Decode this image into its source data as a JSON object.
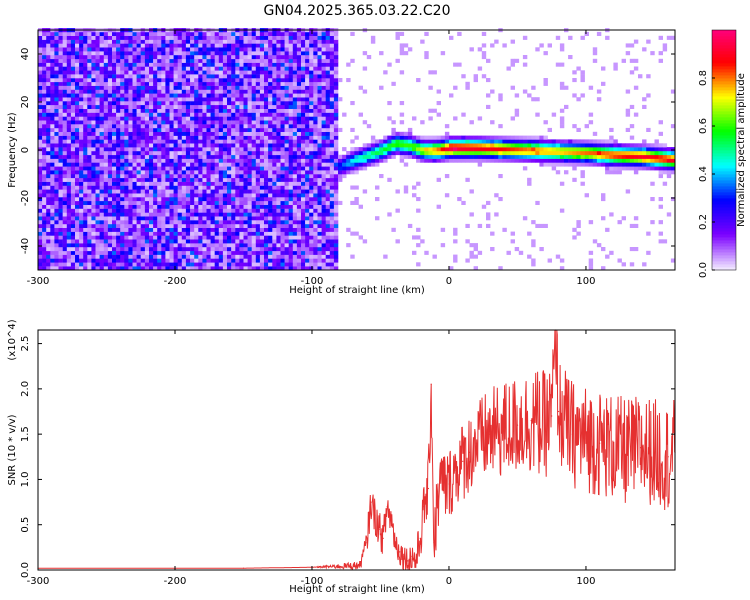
{
  "title": "GN04.2025.365.03.22.C20",
  "chart_data": [
    {
      "type": "heatmap",
      "xlabel": "Height of straight line (km)",
      "ylabel": "Frequency (Hz)",
      "xlim": [
        -300,
        165
      ],
      "ylim": [
        -50,
        50
      ],
      "xticks": [
        -300,
        -200,
        -100,
        0,
        100
      ],
      "yticks": [
        -40,
        -20,
        0,
        20,
        40
      ],
      "grid": false,
      "colorbar": {
        "label": "Normalized spectral amplitude",
        "range": [
          0.0,
          1.0
        ],
        "ticks": [
          "0.0",
          "0.2",
          "0.4",
          "0.6",
          "0.8"
        ],
        "colormap": [
          "#f0e6ff",
          "#7b00ff",
          "#0000ff",
          "#00ffff",
          "#00ff00",
          "#ffff00",
          "#ff0000",
          "#ff0080"
        ]
      },
      "noise_region": {
        "x_from": -300,
        "x_to": -82,
        "amplitude_range": [
          0.02,
          0.35
        ]
      },
      "signal_ridge": {
        "x": [
          -82,
          -70,
          -60,
          -50,
          -40,
          -30,
          -20,
          -10,
          0,
          20,
          40,
          60,
          80,
          100,
          120,
          140,
          165
        ],
        "frequency": [
          -8,
          -5,
          -3,
          -1,
          2,
          1,
          -1,
          -1,
          0,
          0,
          -0.5,
          -1,
          -1.5,
          -2,
          -3,
          -3.5,
          -5
        ],
        "peak_amplitude": [
          0.3,
          0.45,
          0.5,
          0.55,
          0.6,
          0.6,
          0.7,
          0.8,
          0.95,
          0.9,
          0.85,
          0.8,
          0.75,
          0.8,
          0.85,
          0.9,
          0.85
        ]
      }
    },
    {
      "type": "line",
      "xlabel": "Height of straight line (km)",
      "ylabel": "SNR (10 * v/v)",
      "y_multiplier": "(x10^4)",
      "xlim": [
        -300,
        165
      ],
      "ylim": [
        0,
        2.65
      ],
      "xticks": [
        -300,
        -200,
        -100,
        0,
        100
      ],
      "yticks": [
        "0.0",
        "0.5",
        "1.0",
        "1.5",
        "2.0",
        "2.5"
      ],
      "grid": false,
      "series": [
        {
          "color": "#e53030",
          "x": [
            -300,
            -150,
            -100,
            -65,
            -60,
            -57,
            -54,
            -51,
            -48,
            -45,
            -42,
            -39,
            -36,
            -33,
            -30,
            -27,
            -24,
            -21,
            -18,
            -15,
            -13,
            -11,
            -8,
            -5,
            -2,
            0,
            5,
            10,
            15,
            20,
            25,
            30,
            40,
            50,
            60,
            70,
            75,
            78,
            80,
            90,
            100,
            110,
            120,
            130,
            140,
            150,
            160,
            165
          ],
          "y": [
            0.02,
            0.02,
            0.03,
            0.05,
            0.3,
            0.75,
            0.6,
            0.45,
            0.35,
            0.7,
            0.55,
            0.3,
            0.2,
            0.15,
            0.1,
            0.15,
            0.1,
            0.35,
            0.7,
            0.9,
            2.05,
            0.3,
            0.8,
            1.0,
            0.9,
            0.95,
            1.1,
            1.2,
            1.3,
            1.4,
            1.45,
            1.5,
            1.55,
            1.6,
            1.65,
            1.6,
            1.7,
            2.65,
            1.75,
            1.5,
            1.45,
            1.4,
            1.35,
            1.3,
            1.35,
            1.3,
            1.25,
            1.3
          ],
          "band": [
            0.0,
            0.0,
            0.0,
            0.05,
            0.15,
            0.2,
            0.2,
            0.2,
            0.2,
            0.2,
            0.2,
            0.15,
            0.15,
            0.15,
            0.15,
            0.2,
            0.2,
            0.25,
            0.3,
            0.35,
            0.4,
            0.4,
            0.4,
            0.4,
            0.4,
            0.4,
            0.4,
            0.45,
            0.45,
            0.45,
            0.5,
            0.5,
            0.55,
            0.55,
            0.6,
            0.6,
            0.6,
            0.6,
            0.6,
            0.6,
            0.6,
            0.6,
            0.6,
            0.6,
            0.6,
            0.6,
            0.6,
            0.6
          ]
        }
      ]
    }
  ]
}
